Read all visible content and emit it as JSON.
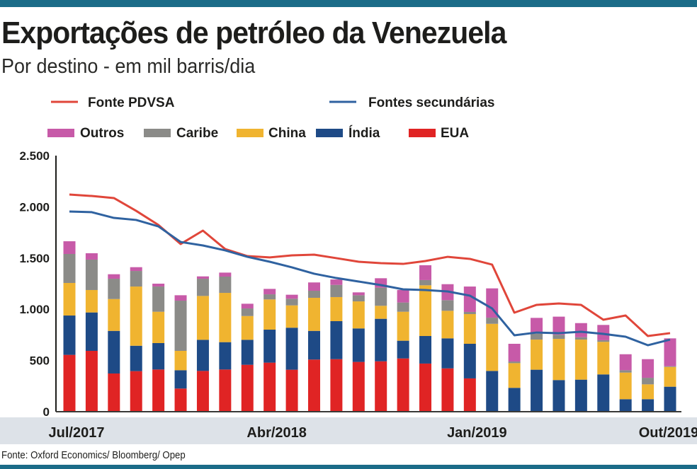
{
  "header": {
    "title": "Exportações de petróleo da Venezuela",
    "subtitle": "Por destino - em mil barris/dia"
  },
  "source": "Fonte: Oxford Economics/ Bloomberg/ Opep",
  "chart_data": {
    "type": "bar",
    "stacked": true,
    "ylim": [
      0,
      2500
    ],
    "yticks": [
      0,
      500,
      1000,
      1500,
      2000,
      2500
    ],
    "ytick_labels": [
      "0",
      "500",
      "1.000",
      "1.500",
      "2.000",
      "2.500"
    ],
    "xticks": [
      {
        "index": 0,
        "label": "Jul/2017"
      },
      {
        "index": 9,
        "label": "Abr/2018"
      },
      {
        "index": 18,
        "label": "Jan/2019"
      },
      {
        "index": 27,
        "label": "Out/2019"
      }
    ],
    "grid": false,
    "legend_placement": "top",
    "series": [
      {
        "name": "EUA",
        "color": "#e02424",
        "values": [
          555,
          594,
          373,
          396,
          412,
          226,
          398,
          412,
          458,
          479,
          410,
          509,
          513,
          486,
          492,
          520,
          470,
          423,
          325,
          0,
          0,
          0,
          0,
          0,
          0,
          0,
          0,
          0
        ]
      },
      {
        "name": "Índia",
        "color": "#1e4a86",
        "values": [
          384,
          375,
          416,
          248,
          258,
          179,
          304,
          267,
          244,
          322,
          410,
          280,
          371,
          327,
          415,
          173,
          269,
          293,
          338,
          398,
          233,
          410,
          309,
          313,
          364,
          122,
          122,
          244
        ]
      },
      {
        "name": "China",
        "color": "#f0b430",
        "values": [
          318,
          219,
          311,
          578,
          306,
          189,
          428,
          481,
          232,
          295,
          218,
          323,
          235,
          264,
          127,
          283,
          495,
          269,
          290,
          460,
          241,
          294,
          402,
          391,
          318,
          260,
          145,
          193
        ]
      },
      {
        "name": "Caribe",
        "color": "#8b8b88",
        "values": [
          283,
          297,
          198,
          152,
          246,
          490,
          168,
          159,
          74,
          50,
          65,
          69,
          119,
          60,
          177,
          90,
          51,
          104,
          21,
          60,
          16,
          58,
          40,
          23,
          16,
          23,
          64,
          7
        ]
      },
      {
        "name": "Outros",
        "color": "#c75aa8",
        "values": [
          124,
          62,
          44,
          37,
          28,
          53,
          23,
          39,
          46,
          53,
          39,
          81,
          53,
          28,
          92,
          122,
          145,
          156,
          248,
          286,
          173,
          154,
          177,
          138,
          149,
          156,
          182,
          272
        ]
      }
    ],
    "lines": [
      {
        "name": "Fonte PDVSA",
        "color": "#e0463a",
        "values": [
          2120,
          2106,
          2086,
          1961,
          1823,
          1637,
          1768,
          1588,
          1519,
          1506,
          1526,
          1533,
          1499,
          1464,
          1450,
          1443,
          1471,
          1512,
          1492,
          1436,
          967,
          1043,
          1057,
          1043,
          898,
          939,
          739,
          767
        ]
      },
      {
        "name": "Fontes secundárias",
        "color": "#2f62a0",
        "values": [
          1954,
          1948,
          1892,
          1872,
          1809,
          1657,
          1623,
          1575,
          1512,
          1464,
          1409,
          1347,
          1305,
          1271,
          1236,
          1195,
          1188,
          1174,
          1133,
          1008,
          746,
          773,
          767,
          780,
          760,
          732,
          649,
          704
        ]
      }
    ]
  }
}
